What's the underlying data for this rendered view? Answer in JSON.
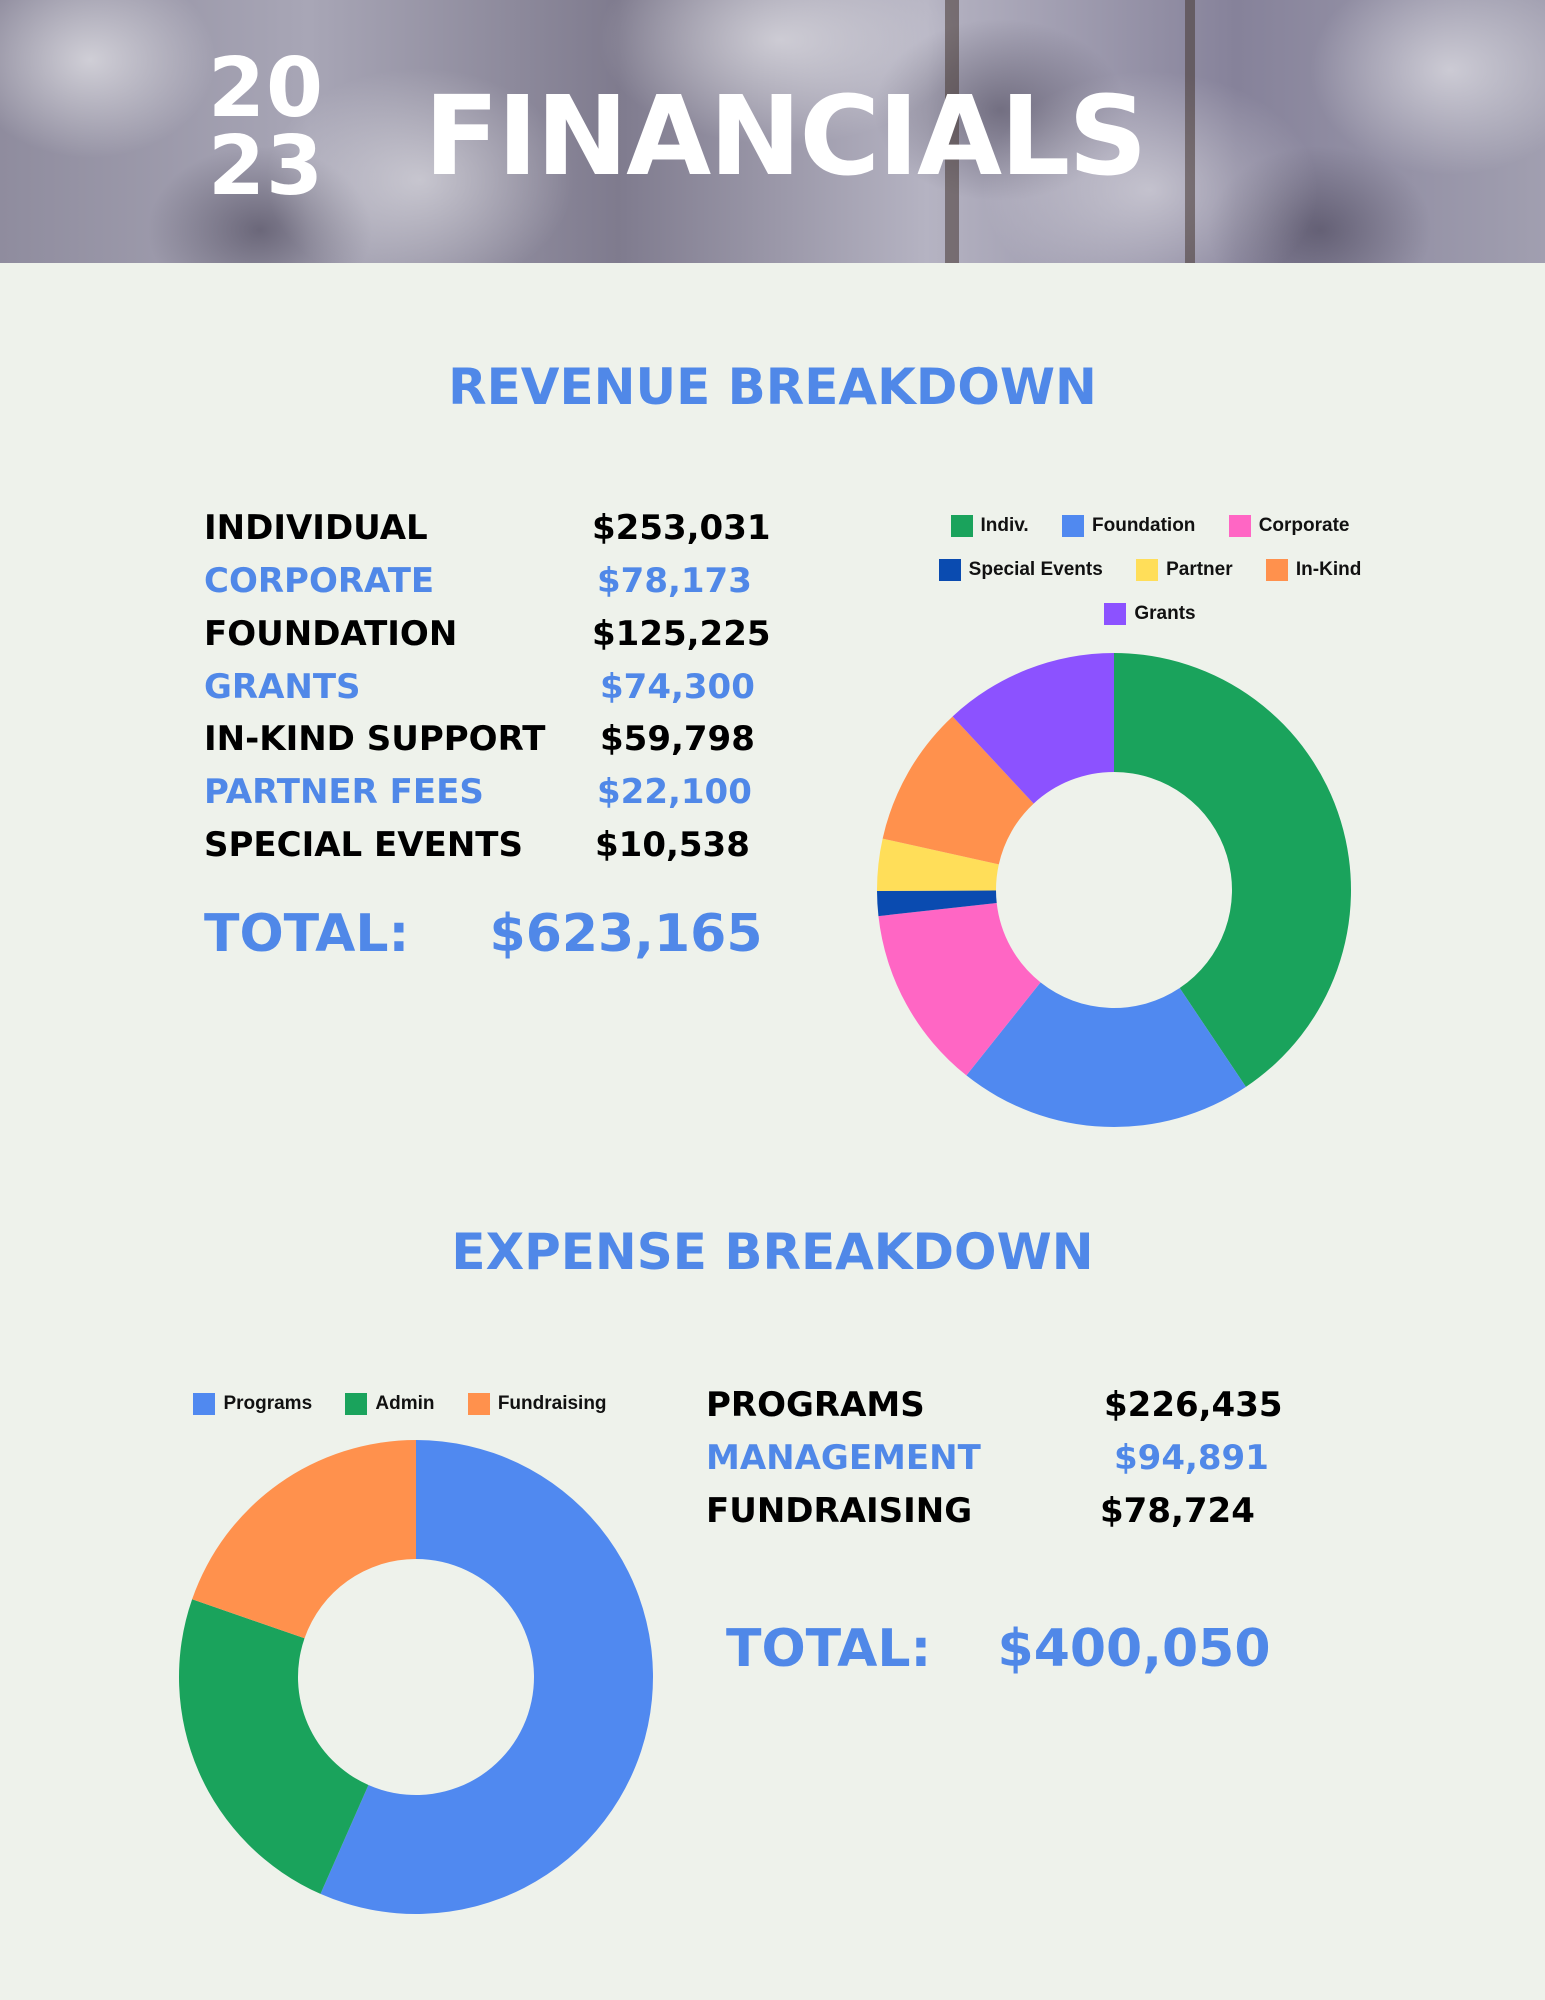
{
  "header": {
    "year_top": "20",
    "year_bottom": "23",
    "title": "FINANCIALS"
  },
  "revenue": {
    "heading": "REVENUE BREAKDOWN",
    "rows": [
      {
        "label": "INDIVIDUAL",
        "amount": "$253,031"
      },
      {
        "label": "CORPORATE",
        "amount": "$78,173"
      },
      {
        "label": "FOUNDATION",
        "amount": "$125,225"
      },
      {
        "label": "GRANTS",
        "amount": "$74,300"
      },
      {
        "label": "IN-KIND SUPPORT",
        "amount": "$59,798"
      },
      {
        "label": "PARTNER FEES",
        "amount": "$22,100"
      },
      {
        "label": "SPECIAL EVENTS",
        "amount": "$10,538"
      }
    ],
    "total_label": "TOTAL:",
    "total_amount": "$623,165"
  },
  "expense": {
    "heading": "EXPENSE BREAKDOWN",
    "rows": [
      {
        "label": "PROGRAMS",
        "amount": "$226,435"
      },
      {
        "label": "MANAGEMENT",
        "amount": "$94,891"
      },
      {
        "label": "FUNDRAISING",
        "amount": "$78,724"
      }
    ],
    "total_label": "TOTAL:",
    "total_amount": "$400,050"
  },
  "chart_data": [
    {
      "type": "pie",
      "subtype": "donut",
      "title": "",
      "legend_position": "top",
      "legend": [
        "Indiv.",
        "Foundation",
        "Corporate",
        "Special Events",
        "Partner",
        "In-Kind",
        "Grants"
      ],
      "categories": [
        "Indiv.",
        "Foundation",
        "Corporate",
        "Special Events",
        "Partner",
        "In-Kind",
        "Grants"
      ],
      "values": [
        253031,
        125225,
        78173,
        10538,
        22100,
        59798,
        74300
      ],
      "colors": [
        "#1aa35c",
        "#5089f0",
        "#ff66c4",
        "#0a4bb0",
        "#ffde59",
        "#ff914d",
        "#8c52ff"
      ]
    },
    {
      "type": "pie",
      "subtype": "donut",
      "title": "",
      "legend_position": "top",
      "legend": [
        "Programs",
        "Admin",
        "Fundraising"
      ],
      "categories": [
        "Programs",
        "Admin",
        "Fundraising"
      ],
      "values": [
        226435,
        94891,
        78724
      ],
      "colors": [
        "#5089f0",
        "#1aa35c",
        "#ff914d"
      ]
    }
  ]
}
